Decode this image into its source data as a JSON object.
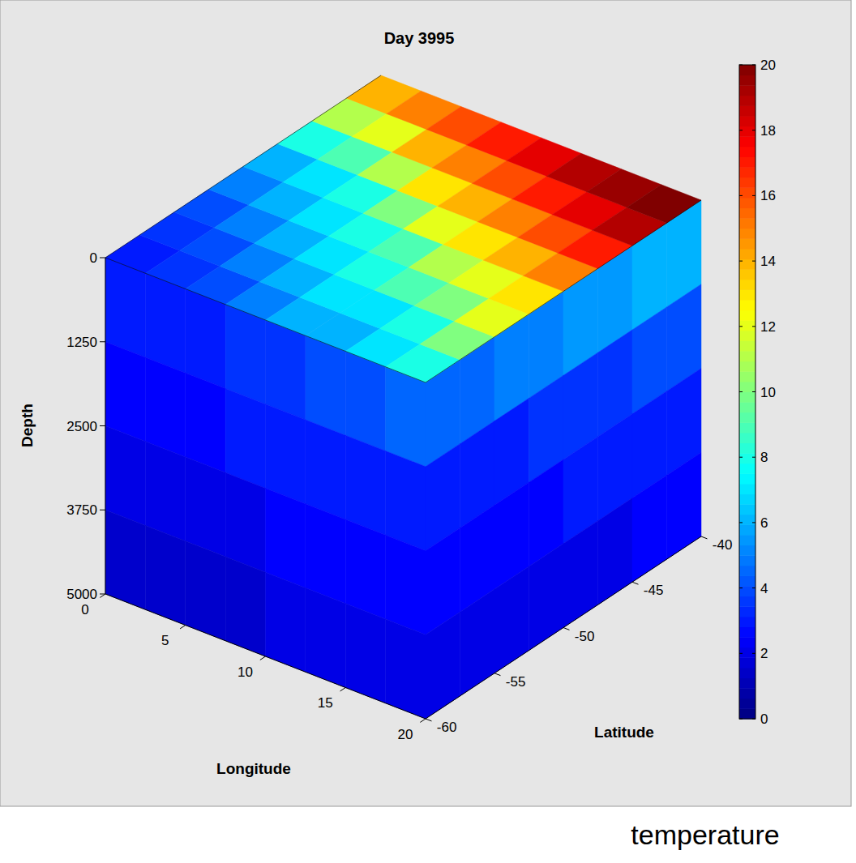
{
  "chart_data": {
    "type": "3d_slice",
    "title": "Day 3995",
    "x_label": "Longitude",
    "y_label": "Latitude",
    "z_label": "Depth",
    "xlim": [
      0,
      20
    ],
    "xticks": [
      0,
      5,
      10,
      15,
      20
    ],
    "ylim": [
      -60,
      -40
    ],
    "yticks": [
      -60,
      -55,
      -50,
      -45,
      -40
    ],
    "zlim": [
      0,
      5000
    ],
    "zticks": [
      0,
      1250,
      2500,
      3750,
      5000
    ],
    "colorbar": {
      "label": "temperature",
      "range": [
        0,
        20
      ],
      "ticks": [
        0,
        2,
        4,
        6,
        8,
        10,
        12,
        14,
        16,
        18,
        20
      ]
    },
    "surface": {
      "lon_edges": [
        0,
        2.5,
        5,
        7.5,
        10,
        12.5,
        15,
        17.5,
        20
      ],
      "lat_edges": [
        -60,
        -57.5,
        -55,
        -52.5,
        -50,
        -47.5,
        -45,
        -42.5,
        -40
      ],
      "values": [
        [
          3,
          3.5,
          4,
          5,
          6,
          6,
          7,
          8
        ],
        [
          3.5,
          4,
          5,
          6,
          7,
          7,
          8,
          10
        ],
        [
          4,
          5,
          6,
          7,
          8,
          9,
          10,
          12
        ],
        [
          5,
          6,
          7,
          8,
          9,
          11,
          12,
          13
        ],
        [
          6,
          7,
          8,
          10,
          12,
          13,
          14,
          15
        ],
        [
          8,
          9,
          11,
          13,
          14,
          15,
          16,
          17
        ],
        [
          11,
          12,
          14,
          15,
          16,
          17,
          18,
          19
        ],
        [
          14,
          15,
          16,
          17,
          18,
          19,
          19.5,
          20
        ]
      ]
    },
    "section_south": {
      "lon_edges": [
        0,
        2.5,
        5,
        7.5,
        10,
        12.5,
        15,
        17.5,
        20
      ],
      "depth_edges": [
        0,
        1250,
        2500,
        3750,
        5000
      ],
      "values": [
        [
          3,
          3,
          3,
          3.5,
          3.5,
          4,
          4,
          4.5
        ],
        [
          2.5,
          2.5,
          2.5,
          3,
          3,
          3,
          3,
          3
        ],
        [
          2,
          2,
          2,
          2,
          2.5,
          2.5,
          2.5,
          2.5
        ],
        [
          1.5,
          1.5,
          1.5,
          1.5,
          2,
          2,
          2,
          2
        ]
      ]
    },
    "section_east": {
      "lat_edges": [
        -60,
        -57.5,
        -55,
        -52.5,
        -50,
        -47.5,
        -45,
        -42.5,
        -40
      ],
      "depth_edges": [
        0,
        1250,
        2500,
        3750,
        5000
      ],
      "values": [
        [
          4.5,
          4.5,
          5,
          5,
          5.5,
          5.5,
          6,
          6
        ],
        [
          3,
          3,
          3,
          3.5,
          3.5,
          3.5,
          4,
          4
        ],
        [
          2.5,
          2.5,
          2.5,
          2.5,
          3,
          3,
          3,
          3
        ],
        [
          2,
          2,
          2,
          2,
          2,
          2,
          2.5,
          2.5
        ]
      ]
    }
  }
}
